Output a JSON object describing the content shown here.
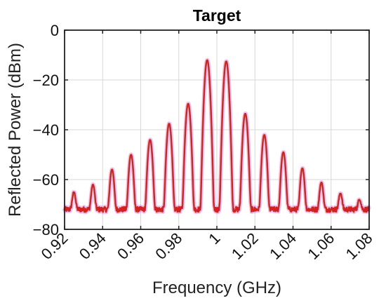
{
  "chart_data": {
    "type": "line",
    "title": "Target",
    "xlabel": "Frequency (GHz)",
    "ylabel": "Reflected Power (dBm)",
    "xlim": [
      0.92,
      1.08
    ],
    "ylim": [
      -80,
      0
    ],
    "xticks": [
      0.92,
      0.94,
      0.96,
      0.98,
      1.0,
      1.02,
      1.04,
      1.06,
      1.08
    ],
    "xtick_labels": [
      "0.92",
      "0.94",
      "0.96",
      "0.98",
      "1",
      "1.02",
      "1.04",
      "1.06",
      "1.08"
    ],
    "yticks": [
      0,
      -20,
      -40,
      -60,
      -80
    ],
    "ytick_labels": [
      "0",
      "−20",
      "−40",
      "−60",
      "−80"
    ],
    "grid": true,
    "noise_floor_dbm": -72,
    "series": [
      {
        "color": "#d62020",
        "peaks": [
          {
            "x": 0.925,
            "y": -66
          },
          {
            "x": 0.935,
            "y": -62.5
          },
          {
            "x": 0.945,
            "y": -56
          },
          {
            "x": 0.955,
            "y": -50
          },
          {
            "x": 0.965,
            "y": -44
          },
          {
            "x": 0.975,
            "y": -37.5
          },
          {
            "x": 0.985,
            "y": -29.5
          },
          {
            "x": 0.995,
            "y": -12
          },
          {
            "x": 1.005,
            "y": -12.5
          },
          {
            "x": 1.015,
            "y": -33.5
          },
          {
            "x": 1.025,
            "y": -42
          },
          {
            "x": 1.035,
            "y": -49
          },
          {
            "x": 1.045,
            "y": -55.5
          },
          {
            "x": 1.055,
            "y": -61.5
          },
          {
            "x": 1.065,
            "y": -66.5
          },
          {
            "x": 1.075,
            "y": -70
          }
        ]
      }
    ]
  }
}
